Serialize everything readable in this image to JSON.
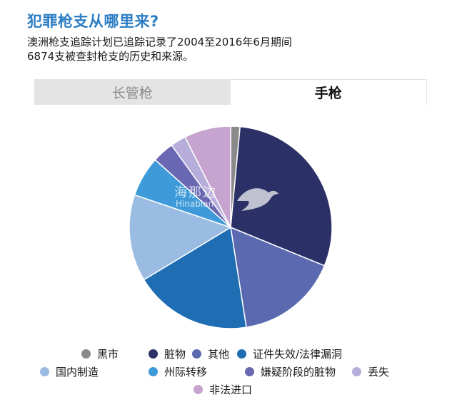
{
  "header": {
    "title": "犯罪枪支从哪里来?",
    "subtitle_line1": "澳洲枪支追踪计划已追踪记录了2004至2016年6月期间",
    "subtitle_line2": "6874支被查封枪支的历史和来源。"
  },
  "tabs": [
    {
      "label": "长管枪",
      "active": false
    },
    {
      "label": "手枪",
      "active": true
    }
  ],
  "watermark": {
    "text_cn": "海那边",
    "text_en": "Hinabian"
  },
  "chart_data": {
    "type": "pie",
    "title": "",
    "start": "12 o'clock",
    "direction": "clockwise",
    "series": [
      {
        "name": "黑市",
        "value": 1.5,
        "color": "#8a8a8a"
      },
      {
        "name": "脏物",
        "value": 30.0,
        "color": "#2b3166"
      },
      {
        "name": "其他",
        "value": 16.5,
        "color": "#5b6ab0"
      },
      {
        "name": "证件失效/法律漏洞",
        "value": 19.0,
        "color": "#1f6db3"
      },
      {
        "name": "国内制造",
        "value": 14.0,
        "color": "#9bbce2"
      },
      {
        "name": "州际转移",
        "value": 6.5,
        "color": "#3e9ad8"
      },
      {
        "name": "嫌疑阶段的脏物",
        "value": 3.5,
        "color": "#6a68b2"
      },
      {
        "name": "丢失",
        "value": 2.5,
        "color": "#b6addb"
      },
      {
        "name": "非法进口",
        "value": 7.5,
        "color": "#c7a3cf"
      }
    ]
  }
}
